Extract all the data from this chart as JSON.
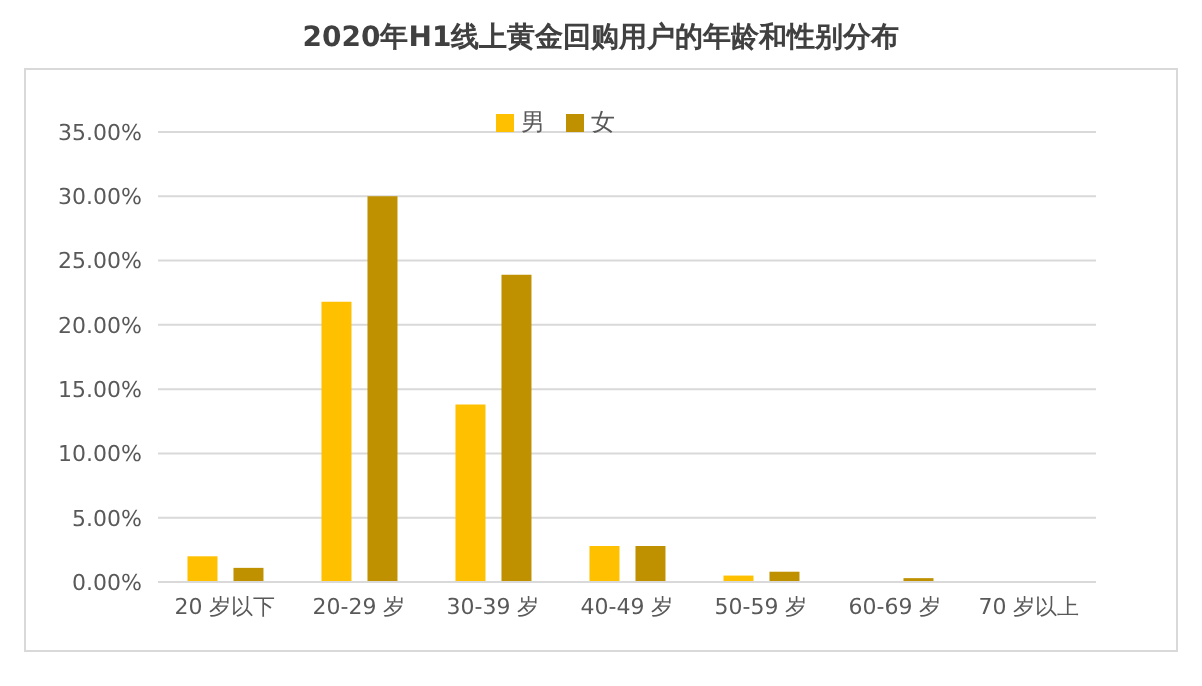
{
  "chart_data": {
    "type": "bar",
    "title": "2020年H1线上黄金回购用户的年龄和性别分布",
    "categories": [
      "20 岁以下",
      "20-29 岁",
      "30-39 岁",
      "40-49 岁",
      "50-59 岁",
      "60-69 岁",
      "70 岁以上"
    ],
    "series": [
      {
        "name": "男",
        "color": "#ffc000",
        "values": [
          2.0,
          21.8,
          13.8,
          2.8,
          0.5,
          null,
          0
        ]
      },
      {
        "name": "女",
        "color": "#bf9000",
        "values": [
          1.1,
          30,
          23.9,
          2.8,
          0.8,
          0.3,
          0
        ]
      }
    ],
    "ylim": [
      0,
      35
    ],
    "yticks": [
      {
        "value": 0,
        "label": "0.00%"
      },
      {
        "value": 5,
        "label": "5.00%"
      },
      {
        "value": 10,
        "label": "10.00%"
      },
      {
        "value": 15,
        "label": "15.00%"
      },
      {
        "value": 20,
        "label": "20.00%"
      },
      {
        "value": 25,
        "label": "25.00%"
      },
      {
        "value": 30,
        "label": "30.00%"
      },
      {
        "value": 35,
        "label": "35.00%"
      }
    ],
    "grid": "y",
    "legend": "top"
  }
}
